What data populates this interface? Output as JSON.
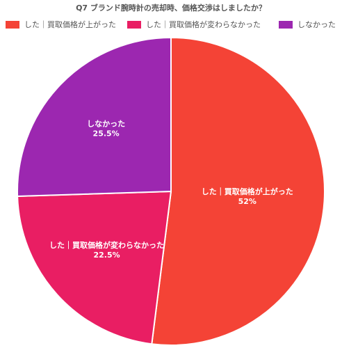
{
  "chart_data": {
    "type": "pie",
    "title": "Q7 ブランド腕時計の売却時、価格交渉はしましたか？",
    "slices": [
      {
        "label": "した｜買取価格が上がった",
        "value": 52,
        "value_label": "52%",
        "color": "#f44336"
      },
      {
        "label": "した｜買取価格が変わらなかった",
        "value": 22.5,
        "value_label": "22.5%",
        "color": "#e91e63"
      },
      {
        "label": "しなかった",
        "value": 25.5,
        "value_label": "25.5%",
        "color": "#9c27b0"
      }
    ],
    "legend_position": "top",
    "slice_label_color": "#ffffff"
  }
}
